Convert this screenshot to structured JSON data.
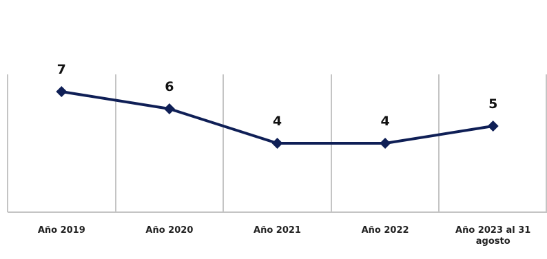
{
  "chart_data": {
    "type": "line",
    "categories": [
      "Año 2019",
      "Año 2020",
      "Año 2021",
      "Año 2022",
      "Año 2023 al 31 agosto"
    ],
    "category_label_lines": [
      [
        "Año 2019"
      ],
      [
        "Año 2020"
      ],
      [
        "Año 2021"
      ],
      [
        "Año 2022"
      ],
      [
        "Año 2023 al 31",
        "agosto"
      ]
    ],
    "series": [
      {
        "values": [
          7,
          6,
          4,
          4,
          5
        ],
        "data_labels": [
          "7",
          "6",
          "4",
          "4",
          "5"
        ]
      }
    ],
    "ylim": [
      0,
      8
    ],
    "marker": "diamond",
    "line_color": "#0f1f56",
    "grid_color": "#c4c4c4",
    "vertical_grid": true,
    "data_labels": true,
    "legend": "none"
  }
}
